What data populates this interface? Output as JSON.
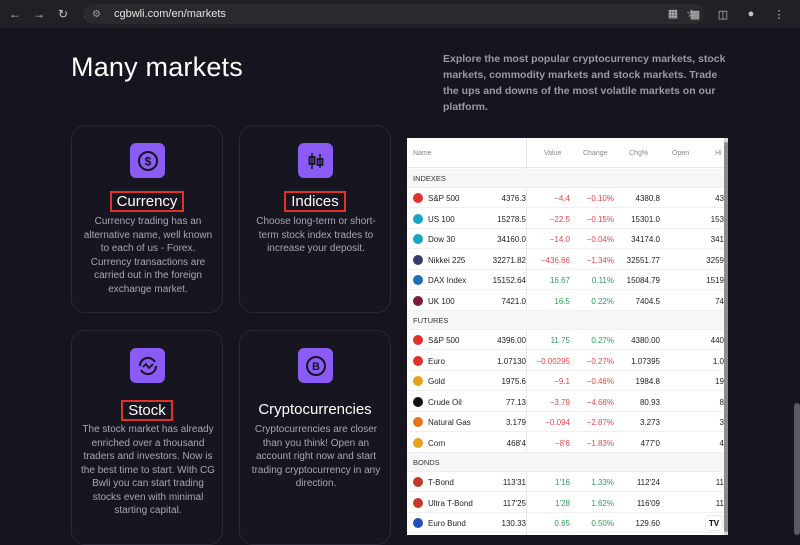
{
  "browser": {
    "url": "cgbwli.com/en/markets",
    "icons": [
      "back-icon",
      "forward-icon",
      "reload-icon",
      "home-icon",
      "site-info-icon",
      "translate-icon",
      "star-icon",
      "extensions-icon",
      "sidebar-icon",
      "profile-icon",
      "menu-icon"
    ]
  },
  "page": {
    "headline": "Many markets",
    "intro": "Explore the most popular cryptocurrency markets, stock markets, commodity markets and stock markets. Trade the ups and downs of the most volatile markets on our platform."
  },
  "cards": [
    {
      "title": "Currency",
      "desc": "Currency trading has an alternative name, well known to each of us - Forex. Currency transactions are carried out in the foreign exchange market.",
      "icon": "dollar-coin-icon",
      "highlighted": true
    },
    {
      "title": "Indices",
      "desc": "Choose long-term or short-term stock index trades to increase your deposit.",
      "icon": "candlestick-icon",
      "highlighted": true
    },
    {
      "title": "Stock",
      "desc": "The stock market has already enriched over a thousand traders and investors. Now is the best time to start. With CG Bwli you can start trading stocks even with minimal starting capital.",
      "icon": "chart-cycle-icon",
      "highlighted": true
    },
    {
      "title": "Cryptocurrencies",
      "desc": "Cryptocurrencies are closer than you think! Open an account right now and start trading cryptocurrency in any direction.",
      "icon": "bitcoin-coin-icon",
      "highlighted": false
    }
  ],
  "ticker": {
    "columns": [
      "Name",
      "Value",
      "Change",
      "Chg%",
      "Open",
      "Hi"
    ],
    "sections": [
      {
        "title": "INDEXES",
        "rows": [
          {
            "name": "S&P 500",
            "value": "4376.3",
            "change": "−4.4",
            "chgp": "−0.10%",
            "open": "4380.8",
            "hi": "43",
            "dir": "down",
            "logo": "#e0312b"
          },
          {
            "name": "US 100",
            "value": "15278.5",
            "change": "−22.5",
            "chgp": "−0.15%",
            "open": "15301.0",
            "hi": "153",
            "dir": "down",
            "logo": "#1aa3c2"
          },
          {
            "name": "Dow 30",
            "value": "34160.0",
            "change": "−14.0",
            "chgp": "−0.04%",
            "open": "34174.0",
            "hi": "341",
            "dir": "down",
            "logo": "#1aa3c2"
          },
          {
            "name": "Nikkei 225",
            "value": "32271.82",
            "change": "−436.66",
            "chgp": "−1.34%",
            "open": "32551.77",
            "hi": "3259",
            "dir": "down",
            "logo": "#3a3a6a"
          },
          {
            "name": "DAX Index",
            "value": "15152.64",
            "change": "16.67",
            "chgp": "0.11%",
            "open": "15084.79",
            "hi": "1519",
            "dir": "up",
            "logo": "#1f6fb5"
          },
          {
            "name": "UK 100",
            "value": "7421.0",
            "change": "16.5",
            "chgp": "0.22%",
            "open": "7404.5",
            "hi": "74",
            "dir": "up",
            "logo": "#7b1e3a"
          }
        ]
      },
      {
        "title": "FUTURES",
        "rows": [
          {
            "name": "S&P 500",
            "value": "4396.00",
            "change": "11.75",
            "chgp": "0.27%",
            "open": "4380.00",
            "hi": "440",
            "dir": "up",
            "logo": "#e0312b"
          },
          {
            "name": "Euro",
            "value": "1.07130",
            "change": "−0.00295",
            "chgp": "−0.27%",
            "open": "1.07395",
            "hi": "1.0",
            "dir": "down",
            "logo": "#e0312b"
          },
          {
            "name": "Gold",
            "value": "1975.6",
            "change": "−9.1",
            "chgp": "−0.46%",
            "open": "1984.8",
            "hi": "19",
            "dir": "down",
            "logo": "#e5a21a"
          },
          {
            "name": "Crude Oil",
            "value": "77.13",
            "change": "−3.79",
            "chgp": "−4.68%",
            "open": "80.93",
            "hi": "8",
            "dir": "down",
            "logo": "#111111"
          },
          {
            "name": "Natural Gas",
            "value": "3.179",
            "change": "−0.094",
            "chgp": "−2.87%",
            "open": "3.273",
            "hi": "3",
            "dir": "down",
            "logo": "#e5751a"
          },
          {
            "name": "Corn",
            "value": "468'4",
            "change": "−8'6",
            "chgp": "−1.83%",
            "open": "477'0",
            "hi": "4",
            "dir": "down",
            "logo": "#e5a21a"
          }
        ]
      },
      {
        "title": "BONDS",
        "rows": [
          {
            "name": "T-Bond",
            "value": "113'31",
            "change": "1'16",
            "chgp": "1.33%",
            "open": "112'24",
            "hi": "11",
            "dir": "up",
            "logo": "#c0392b"
          },
          {
            "name": "Ultra T-Bond",
            "value": "117'25",
            "change": "1'28",
            "chgp": "1.62%",
            "open": "116'09",
            "hi": "11",
            "dir": "up",
            "logo": "#c0392b"
          },
          {
            "name": "Euro Bund",
            "value": "130.33",
            "change": "0.65",
            "chgp": "0.50%",
            "open": "129.60",
            "hi": "",
            "dir": "up",
            "logo": "#1f4fb5"
          }
        ]
      }
    ],
    "badge": "TV"
  }
}
